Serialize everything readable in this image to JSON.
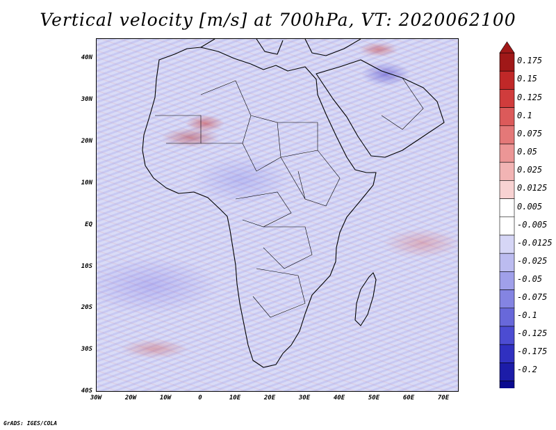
{
  "title": "Vertical velocity [m/s] at 700hPa, VT: 2020062100",
  "credit": "GrADS: IGES/COLA",
  "map": {
    "lat_labels": [
      "40N",
      "30N",
      "20N",
      "10N",
      "EQ",
      "10S",
      "20S",
      "30S",
      "40S"
    ],
    "lon_labels": [
      "30W",
      "20W",
      "10W",
      "0",
      "10E",
      "20E",
      "30E",
      "40E",
      "50E",
      "60E",
      "70E"
    ],
    "lat_range": [
      -40,
      45
    ],
    "lon_range": [
      -30,
      75
    ]
  },
  "colorbar": {
    "labels": [
      "0.175",
      "0.15",
      "0.125",
      "0.1",
      "0.075",
      "0.05",
      "0.025",
      "0.0125",
      "0.005",
      "-0.005",
      "-0.0125",
      "-0.025",
      "-0.05",
      "-0.075",
      "-0.1",
      "-0.125",
      "-0.175",
      "-0.2"
    ],
    "colors": [
      "#a01818",
      "#c02828",
      "#d03c3c",
      "#dc5a5a",
      "#e47878",
      "#ec9696",
      "#f2b4b4",
      "#f8d2d2",
      "#ffffff",
      "#ffffff",
      "#d6d6f6",
      "#bcbcf0",
      "#a0a0ea",
      "#8484e2",
      "#6868da",
      "#4c4cd2",
      "#3030c0",
      "#1c1ca8",
      "#0a0a90"
    ]
  }
}
